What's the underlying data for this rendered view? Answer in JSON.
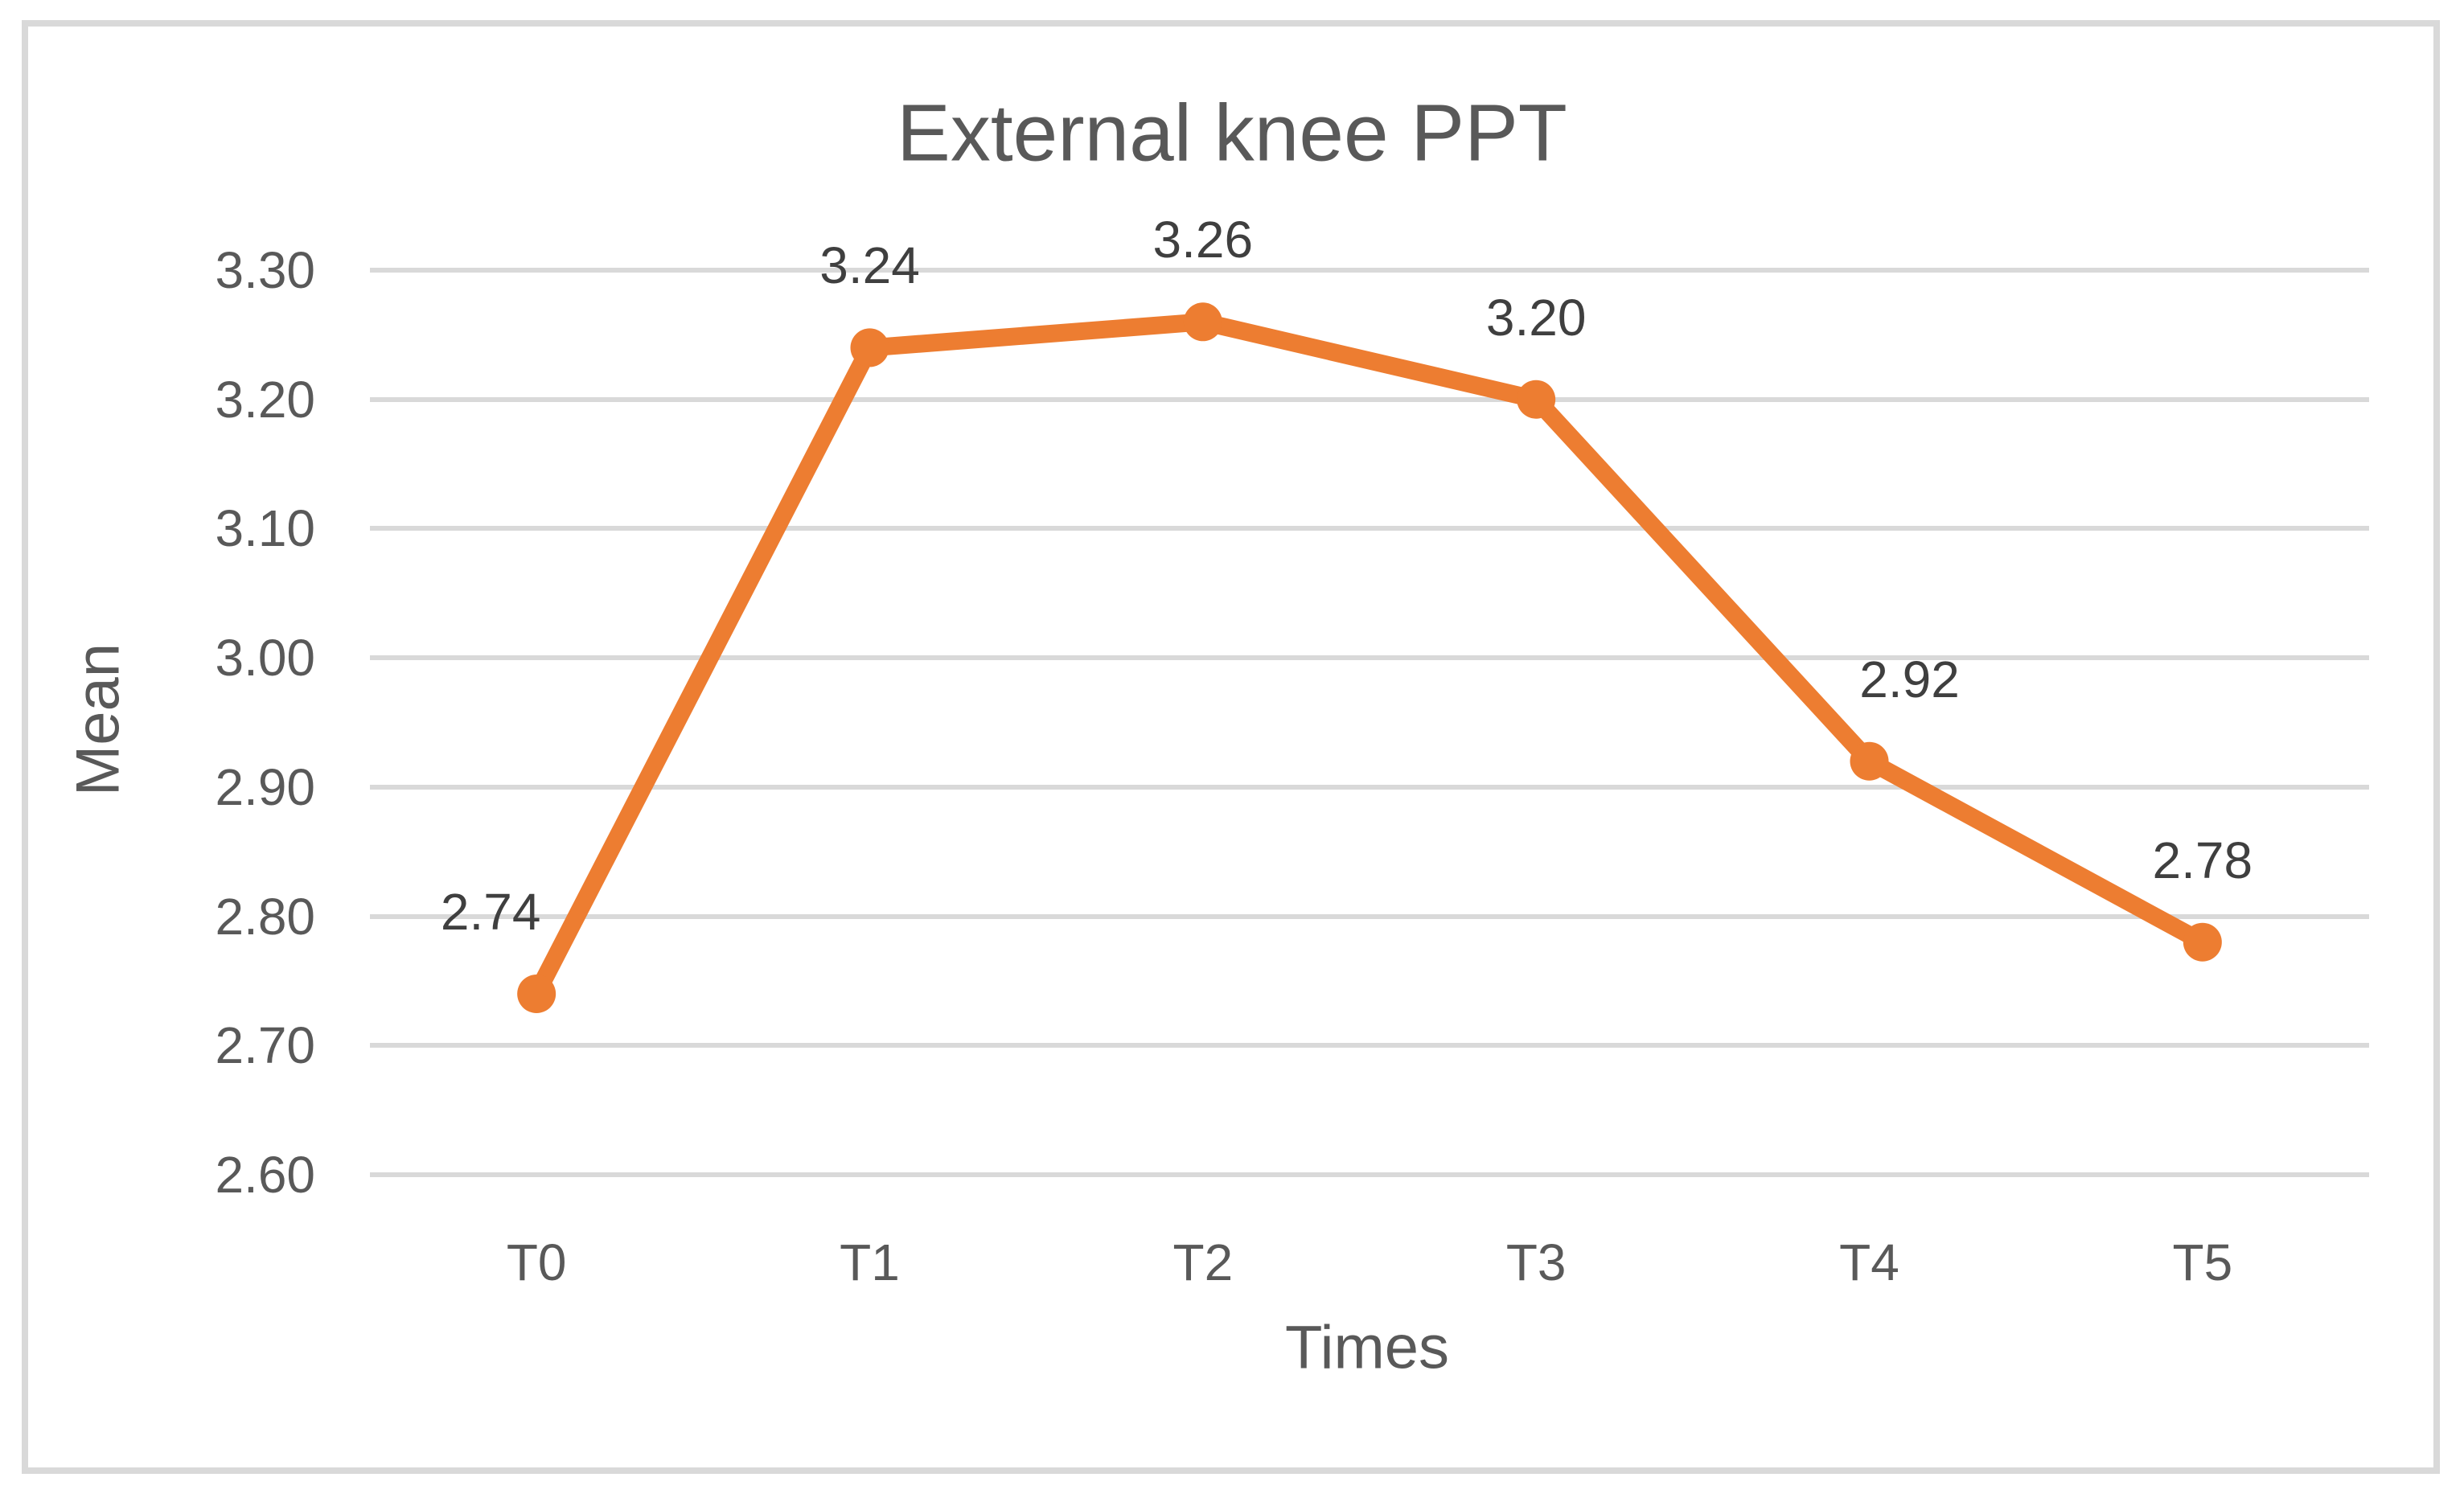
{
  "chart_data": {
    "type": "line",
    "title": "External knee PPT",
    "xlabel": "Times",
    "ylabel": "Mean",
    "categories": [
      "T0",
      "T1",
      "T2",
      "T3",
      "T4",
      "T5"
    ],
    "series": [
      {
        "name": "External knee PPT",
        "values": [
          2.74,
          3.24,
          3.26,
          3.2,
          2.92,
          2.78
        ]
      }
    ],
    "point_labels": [
      "2.74",
      "3.24",
      "3.26",
      "3.20",
      "2.92",
      "2.78"
    ],
    "ylim": [
      2.6,
      3.3
    ],
    "ytick_step": 0.1,
    "ytick_labels": [
      "2.60",
      "2.70",
      "2.80",
      "2.90",
      "3.00",
      "3.10",
      "3.20",
      "3.30"
    ],
    "grid": true,
    "legend": false,
    "marker": "circle",
    "colors": {
      "series": "#ED7D31",
      "gridline": "#D9D9D9",
      "border": "#D9D9D9",
      "tick_text": "#595959",
      "title_text": "#595959",
      "axis_title_text": "#595959",
      "data_label_text": "#3F3F3F",
      "background": "#FFFFFF"
    }
  }
}
